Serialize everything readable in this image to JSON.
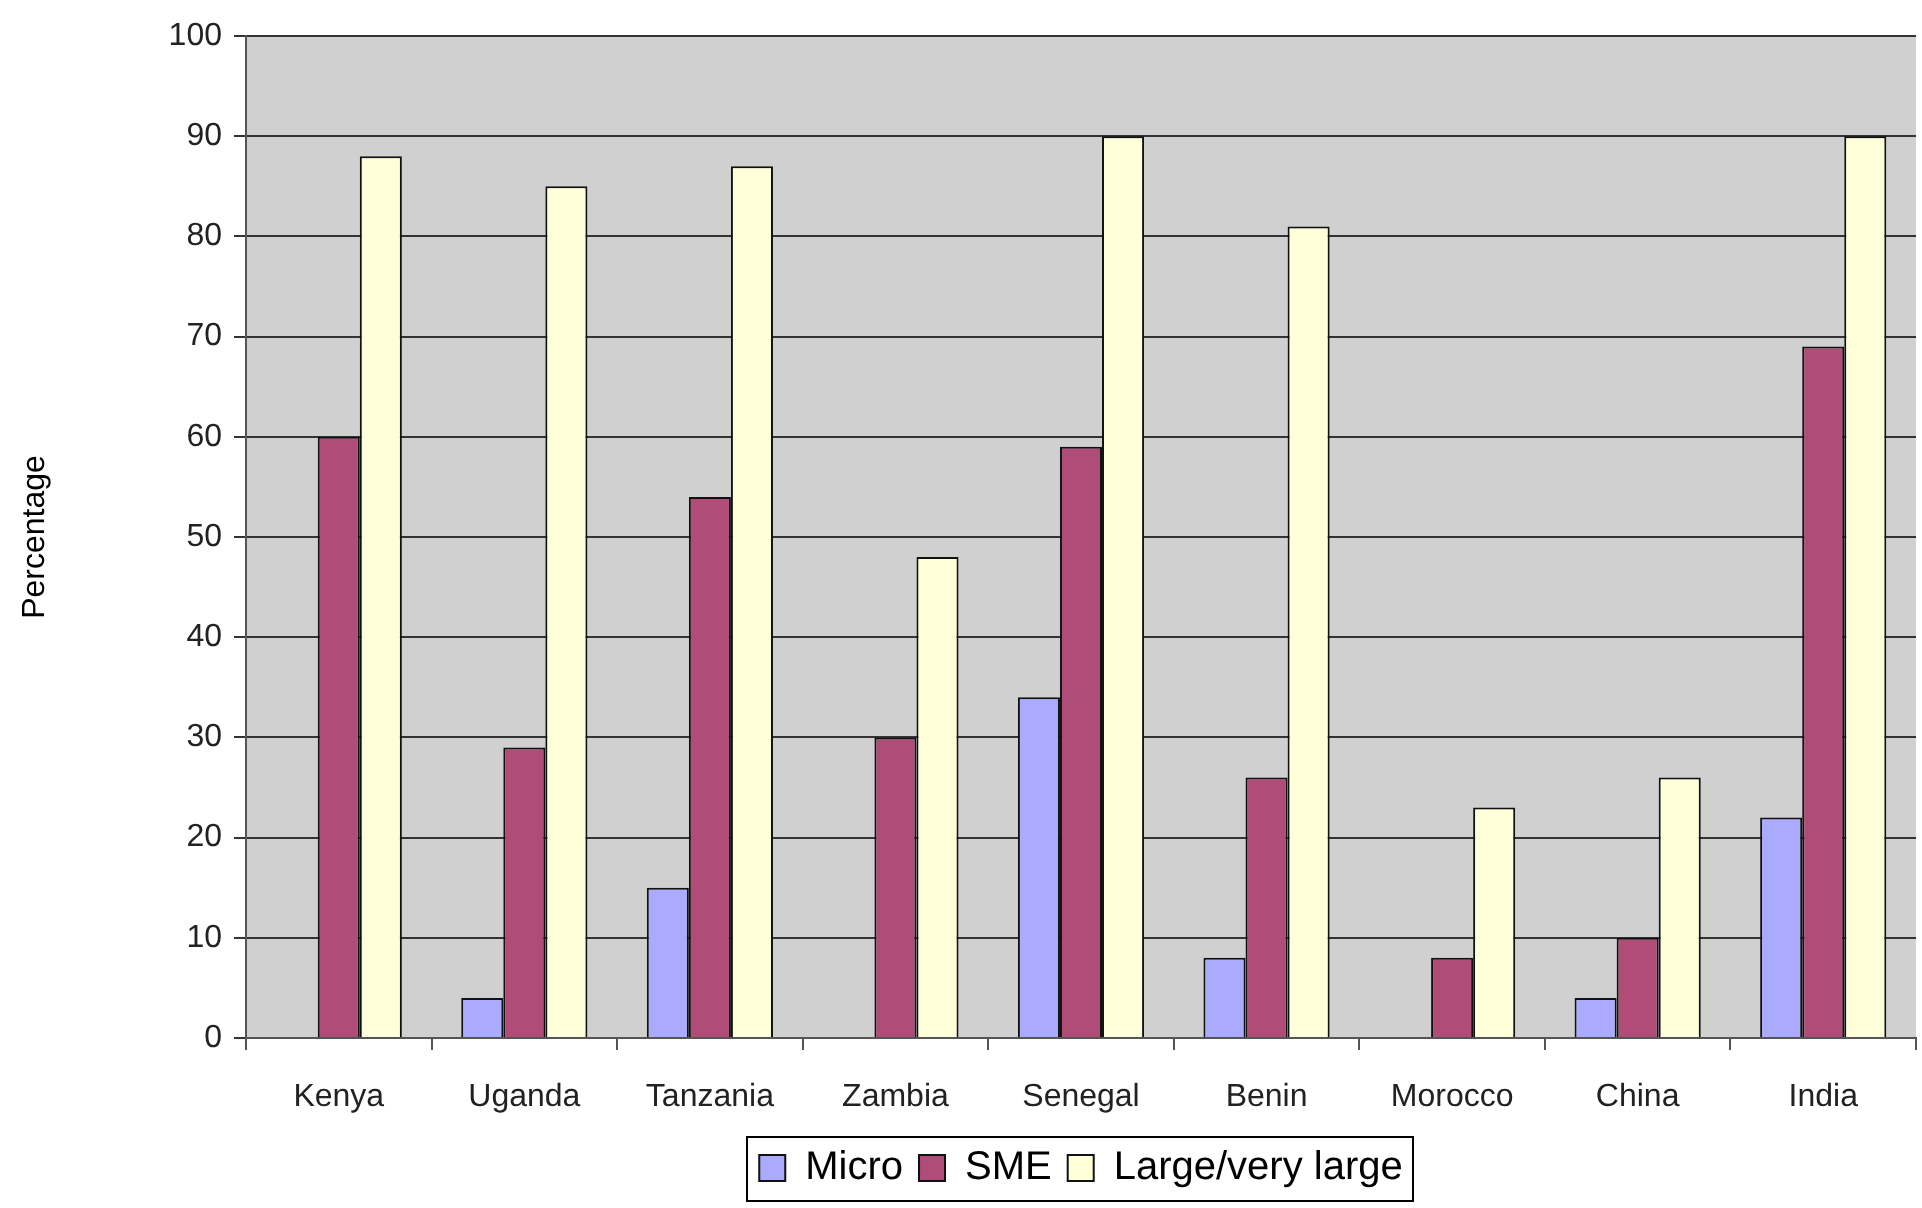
{
  "chart_data": {
    "type": "bar",
    "categories": [
      "Kenya",
      "Uganda",
      "Tanzania",
      "Zambia",
      "Senegal",
      "Benin",
      "Morocco",
      "China",
      "India"
    ],
    "series": [
      {
        "name": "Micro",
        "color": "#aaaaff",
        "values": [
          null,
          4,
          15,
          null,
          34,
          8,
          null,
          4,
          22
        ]
      },
      {
        "name": "SME",
        "color": "#b04c78",
        "values": [
          60,
          29,
          54,
          30,
          59,
          26,
          8,
          10,
          69
        ]
      },
      {
        "name": "Large/very large",
        "color": "#ffffd9",
        "values": [
          88,
          85,
          87,
          48,
          90,
          81,
          23,
          26,
          90
        ]
      }
    ],
    "ylabel": "Percentage",
    "ylim": [
      0,
      100
    ],
    "yticks": [
      0,
      10,
      20,
      30,
      40,
      50,
      60,
      70,
      80,
      90,
      100
    ],
    "grid": "y",
    "legend": "bottom"
  }
}
